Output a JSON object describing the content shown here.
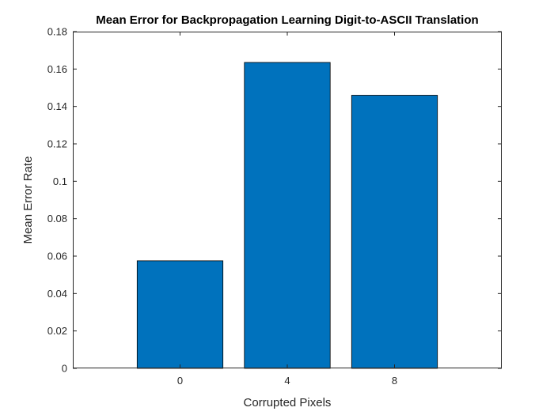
{
  "chart_data": {
    "type": "bar",
    "title": "Mean Error for Backpropagation Learning Digit-to-ASCII Translation",
    "xlabel": "Corrupted Pixels",
    "ylabel": "Mean Error Rate",
    "categories": [
      "0",
      "4",
      "8"
    ],
    "values": [
      0.0575,
      0.1635,
      0.146
    ],
    "xlim": [
      -4,
      12
    ],
    "ylim": [
      0,
      0.18
    ],
    "yticks": [
      0,
      0.02,
      0.04,
      0.06,
      0.08,
      0.1,
      0.12,
      0.14,
      0.16,
      0.18
    ],
    "ytick_labels": [
      "0",
      "0.02",
      "0.04",
      "0.06",
      "0.08",
      "0.1",
      "0.12",
      "0.14",
      "0.16",
      "0.18"
    ],
    "bar_color": "#0072BD",
    "grid": false,
    "legend": "none"
  }
}
